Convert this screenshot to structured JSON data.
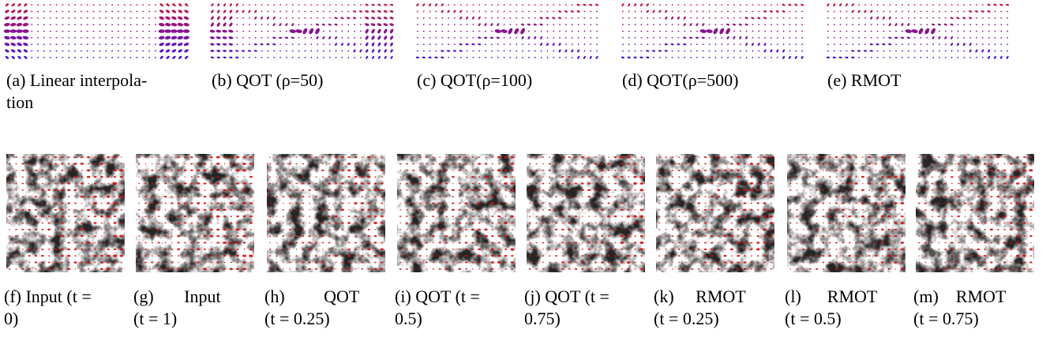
{
  "top_row": [
    {
      "caption_lines": [
        "(a) Linear interpola-",
        "tion"
      ]
    },
    {
      "caption_lines": [
        "(b) QOT (ρ=50)"
      ]
    },
    {
      "caption_lines": [
        "(c) QOT(ρ=100)"
      ]
    },
    {
      "caption_lines": [
        "(d) QOT(ρ=500)"
      ]
    },
    {
      "caption_lines": [
        "(e) RMOT"
      ]
    }
  ],
  "bottom_row": [
    {
      "caption_lines": [
        "(f) Input (t =",
        "0)"
      ]
    },
    {
      "caption_lines": [
        "(g)       Input",
        "(t = 1)"
      ]
    },
    {
      "caption_lines": [
        "(h)         QOT",
        "(t = 0.25)"
      ]
    },
    {
      "caption_lines": [
        "(i) QOT (t =",
        "0.5)"
      ]
    },
    {
      "caption_lines": [
        "(j) QOT (t =",
        "0.75)"
      ]
    },
    {
      "caption_lines": [
        "(k)     RMOT",
        "(t = 0.25)"
      ]
    },
    {
      "caption_lines": [
        "(l)      RMOT",
        "(t = 0.5)"
      ]
    },
    {
      "caption_lines": [
        "(m)    RMOT",
        "(t = 0.75)"
      ]
    }
  ]
}
